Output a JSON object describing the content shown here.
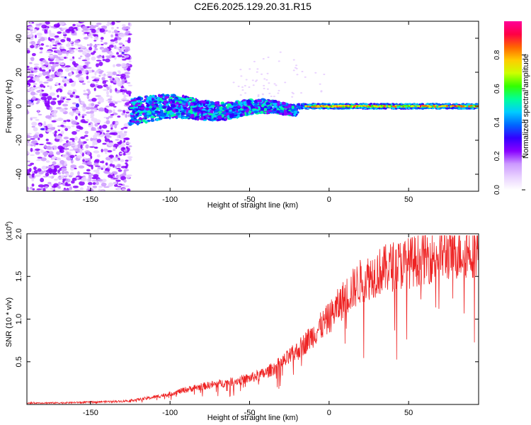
{
  "figure": {
    "title": "C2E6.2025.129.20.31.R15"
  },
  "chart_data": [
    {
      "type": "heatmap",
      "xlabel": "Height of straight line (km)",
      "ylabel": "Frequency (Hz)",
      "xlim": [
        -190,
        94
      ],
      "ylim": [
        -50,
        50
      ],
      "xticks": [
        -150,
        -100,
        -50,
        0,
        50
      ],
      "yticks": [
        -40,
        -20,
        0,
        20,
        40
      ],
      "grid": false,
      "colorbar": {
        "label": "Normalized spectral amplitude",
        "range": [
          0,
          1
        ],
        "ticks": [
          "0.0",
          "0.2",
          "0.4",
          "0.6",
          "0.8"
        ],
        "colors": [
          "#ffffff",
          "#e9d2ff",
          "#cc99ff",
          "#8800ff",
          "#3300ff",
          "#0066ff",
          "#00ccff",
          "#00ff99",
          "#33ff00",
          "#ccff00",
          "#ffcc00",
          "#ff6600",
          "#ff0044",
          "#ff0099"
        ]
      },
      "description_of_bands": [
        {
          "x_range": [
            -190,
            -125
          ],
          "frequency_range": [
            -50,
            50
          ],
          "amplitude": "low, broadband scatter"
        },
        {
          "x_range": [
            -125,
            -20
          ],
          "frequency_range": [
            -10,
            10
          ],
          "amplitude": "moderate, centred near 0 Hz"
        },
        {
          "x_range": [
            -20,
            94
          ],
          "frequency_range": [
            -2,
            2
          ],
          "amplitude": "high, narrow line at 0 Hz"
        }
      ]
    },
    {
      "type": "line",
      "xlabel": "Height of straight line (km)",
      "ylabel": "SNR (10 * v/v)",
      "y_multiplier_label": "(x10",
      "y_multiplier_exp": "4",
      "xlim": [
        -190,
        94
      ],
      "ylim": [
        0,
        2.0
      ],
      "xticks": [
        -150,
        -100,
        -50,
        0,
        50
      ],
      "yticks": [
        "0.5",
        "1.0",
        "1.5",
        "2.0"
      ],
      "color": "#ee2222",
      "series": [
        {
          "x": [
            -190,
            -170,
            -150,
            -130,
            -120,
            -110,
            -100,
            -90,
            -80,
            -70,
            -60,
            -50,
            -40,
            -30,
            -20,
            -10,
            0,
            10,
            20,
            30,
            40,
            50,
            60,
            70,
            80,
            90,
            94
          ],
          "y": [
            0.02,
            0.02,
            0.03,
            0.04,
            0.06,
            0.09,
            0.13,
            0.18,
            0.22,
            0.25,
            0.28,
            0.32,
            0.38,
            0.5,
            0.65,
            0.85,
            1.05,
            1.3,
            1.5,
            1.6,
            1.68,
            1.72,
            1.78,
            1.82,
            1.85,
            1.88,
            1.9
          ]
        }
      ]
    }
  ]
}
